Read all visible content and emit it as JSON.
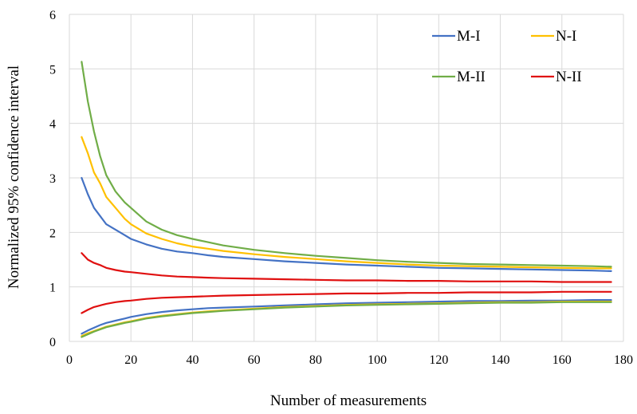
{
  "chart_data": {
    "type": "line",
    "title": "",
    "xlabel": "Number of measurements",
    "ylabel": "Normalized 95% confidence interval",
    "xlim": [
      0,
      180
    ],
    "ylim": [
      0,
      6
    ],
    "x_ticks": [
      0,
      20,
      40,
      60,
      80,
      100,
      120,
      140,
      160,
      180
    ],
    "y_ticks": [
      0,
      1,
      2,
      3,
      4,
      5,
      6
    ],
    "grid": true,
    "legend_position": "top-right",
    "x": [
      4,
      6,
      8,
      10,
      12,
      15,
      18,
      20,
      25,
      30,
      35,
      40,
      45,
      50,
      60,
      70,
      80,
      90,
      100,
      110,
      120,
      130,
      140,
      150,
      160,
      170,
      176
    ],
    "series": [
      {
        "name": "M-I",
        "color": "#4472c4",
        "bands": [
          [
            3.0,
            2.7,
            2.45,
            2.3,
            2.15,
            2.05,
            1.95,
            1.88,
            1.78,
            1.7,
            1.65,
            1.62,
            1.58,
            1.55,
            1.51,
            1.47,
            1.44,
            1.41,
            1.39,
            1.37,
            1.35,
            1.34,
            1.33,
            1.32,
            1.31,
            1.3,
            1.29
          ],
          [
            0.14,
            0.2,
            0.25,
            0.3,
            0.34,
            0.38,
            0.42,
            0.45,
            0.5,
            0.54,
            0.57,
            0.59,
            0.61,
            0.62,
            0.64,
            0.66,
            0.68,
            0.7,
            0.71,
            0.72,
            0.73,
            0.74,
            0.74,
            0.75,
            0.75,
            0.76,
            0.76
          ]
        ]
      },
      {
        "name": "N-I",
        "color": "#ffc000",
        "bands": [
          [
            3.75,
            3.45,
            3.1,
            2.9,
            2.65,
            2.45,
            2.25,
            2.15,
            1.98,
            1.88,
            1.8,
            1.74,
            1.7,
            1.66,
            1.6,
            1.55,
            1.51,
            1.47,
            1.44,
            1.41,
            1.39,
            1.38,
            1.37,
            1.36,
            1.35,
            1.34,
            1.34
          ],
          [
            0.1,
            0.15,
            0.19,
            0.23,
            0.27,
            0.31,
            0.35,
            0.37,
            0.43,
            0.47,
            0.5,
            0.53,
            0.55,
            0.57,
            0.6,
            0.63,
            0.65,
            0.67,
            0.68,
            0.69,
            0.7,
            0.71,
            0.72,
            0.72,
            0.73,
            0.73,
            0.73
          ]
        ]
      },
      {
        "name": "M-II",
        "color": "#70ad47",
        "bands": [
          [
            5.13,
            4.4,
            3.85,
            3.4,
            3.05,
            2.75,
            2.55,
            2.45,
            2.2,
            2.05,
            1.95,
            1.88,
            1.82,
            1.76,
            1.68,
            1.62,
            1.57,
            1.53,
            1.49,
            1.46,
            1.44,
            1.42,
            1.41,
            1.4,
            1.39,
            1.38,
            1.37
          ],
          [
            0.08,
            0.13,
            0.18,
            0.22,
            0.26,
            0.3,
            0.34,
            0.36,
            0.42,
            0.46,
            0.49,
            0.52,
            0.54,
            0.56,
            0.59,
            0.62,
            0.64,
            0.66,
            0.67,
            0.68,
            0.69,
            0.7,
            0.71,
            0.71,
            0.72,
            0.72,
            0.72
          ]
        ]
      },
      {
        "name": "N-II",
        "color": "#e01010",
        "bands": [
          [
            1.62,
            1.5,
            1.44,
            1.4,
            1.35,
            1.31,
            1.28,
            1.27,
            1.24,
            1.21,
            1.19,
            1.18,
            1.17,
            1.16,
            1.15,
            1.14,
            1.13,
            1.12,
            1.12,
            1.11,
            1.11,
            1.1,
            1.1,
            1.1,
            1.09,
            1.09,
            1.09
          ],
          [
            0.52,
            0.58,
            0.63,
            0.66,
            0.69,
            0.72,
            0.74,
            0.75,
            0.78,
            0.8,
            0.81,
            0.82,
            0.83,
            0.84,
            0.85,
            0.86,
            0.87,
            0.88,
            0.88,
            0.89,
            0.89,
            0.9,
            0.9,
            0.9,
            0.91,
            0.91,
            0.91
          ]
        ]
      }
    ]
  }
}
